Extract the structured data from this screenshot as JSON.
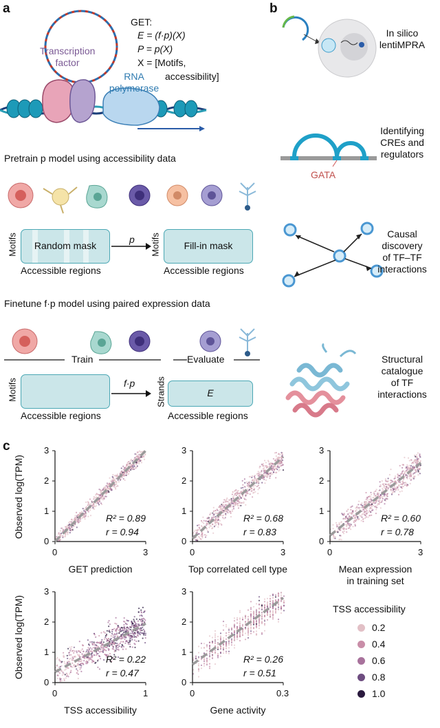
{
  "panel_a": {
    "letter": "a",
    "get_title": "GET:",
    "eq1": "E = (f·p)(X)",
    "eq2": "P = p(X)",
    "eq3a": "X = [Motifs,",
    "eq3b": "accessibility]",
    "tf_label_1": "Transcription",
    "tf_label_2": "factor",
    "rnap_label_1": "RNA",
    "rnap_label_2": "polymerase",
    "pretrain_title": "Pretrain p model using accessibility data",
    "mask_box_left": "Random mask",
    "mask_box_right": "Fill-in mask",
    "p_arrow": "p",
    "motifs": "Motifs",
    "accessible_regions": "Accessible regions",
    "finetune_title": "Finetune f·p model using paired expression data",
    "train": "Train",
    "evaluate": "Evaluate",
    "fp_arrow": "f·p",
    "strands": "Strands",
    "e_label": "E"
  },
  "panel_b": {
    "letter": "b",
    "items": [
      {
        "label": "In silico\nlentiMPRA"
      },
      {
        "label": "Identifying\nCREs and\nregulators"
      },
      {
        "label": "Causal\ndiscovery\nof TF–TF\ninteractions"
      },
      {
        "label": "Structural\ncatalogue\nof TF\ninteractions"
      }
    ],
    "gata": "GATA"
  },
  "panel_c": {
    "letter": "c",
    "ylabel": "Observed log(TPM)",
    "legend_title": "TSS accessibility",
    "legend_values": [
      "0.2",
      "0.4",
      "0.6",
      "0.8",
      "1.0"
    ],
    "legend_colors": [
      "#e2c0c6",
      "#c98ea8",
      "#a8729c",
      "#6e4d80",
      "#2a1a3e"
    ]
  },
  "chart_data": [
    {
      "type": "scatter",
      "xlabel": "GET prediction",
      "xlim": [
        0,
        3
      ],
      "ylim": [
        0,
        3
      ],
      "xticks": [
        "0",
        "3"
      ],
      "yticks": [
        "0",
        "1",
        "2",
        "3"
      ],
      "r2": "R² = 0.89",
      "r": "r = 0.94",
      "fit": [
        [
          0,
          0
        ],
        [
          3,
          3
        ]
      ],
      "spread": 0.35
    },
    {
      "type": "scatter",
      "xlabel": "Top correlated cell type",
      "xlim": [
        0,
        3
      ],
      "ylim": [
        0,
        3
      ],
      "xticks": [
        "0",
        "3"
      ],
      "yticks": [
        "0",
        "1",
        "2",
        "3"
      ],
      "r2": "R² = 0.68",
      "r": "r = 0.83",
      "fit": [
        [
          0,
          0.1
        ],
        [
          3,
          2.8
        ]
      ],
      "spread": 0.55
    },
    {
      "type": "scatter",
      "xlabel": "Mean expression\nin training set",
      "xlim": [
        0,
        3
      ],
      "ylim": [
        0,
        3
      ],
      "xticks": [
        "0",
        "3"
      ],
      "yticks": [
        "0",
        "1",
        "2",
        "3"
      ],
      "r2": "R² = 0.60",
      "r": "r = 0.78",
      "fit": [
        [
          0,
          0.2
        ],
        [
          3,
          2.6
        ]
      ],
      "spread": 0.6
    },
    {
      "type": "scatter",
      "xlabel": "TSS accessibility",
      "xlim": [
        0,
        1
      ],
      "ylim": [
        0,
        3
      ],
      "xticks": [
        "0",
        "1"
      ],
      "yticks": [
        "0",
        "1",
        "2",
        "3"
      ],
      "r2": "R² = 0.22",
      "r": "r = 0.47",
      "fit": [
        [
          0,
          0.35
        ],
        [
          1,
          1.95
        ]
      ],
      "spread": 0.8
    },
    {
      "type": "scatter",
      "xlabel": "Gene activity",
      "xlim": [
        0,
        0.3
      ],
      "ylim": [
        0,
        3
      ],
      "xticks": [
        "0",
        "0.3"
      ],
      "yticks": [
        "0",
        "1",
        "2",
        "3"
      ],
      "r2": "R² = 0.26",
      "r": "r = 0.51",
      "fit": [
        [
          0,
          0.6
        ],
        [
          0.3,
          2.8
        ]
      ],
      "spread": 0.7
    }
  ]
}
